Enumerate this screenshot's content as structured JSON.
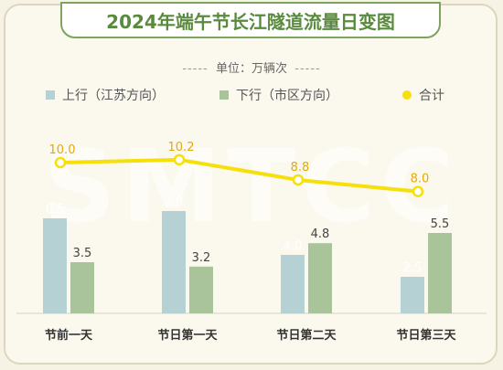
{
  "title": "2024年端午节长江隧道流量日变图",
  "unit_prefix": "单位：",
  "unit": "万辆次",
  "unit_dash": "-----",
  "watermark": "SMTCC",
  "colors": {
    "up": "#b5d1d3",
    "down": "#a9c49b",
    "total": "#f6df0a",
    "total_dot_fill": "#ffffff",
    "up_label": "#ffffff",
    "down_label": "#444444",
    "total_label": "#e6a90a"
  },
  "legend": [
    {
      "name": "上行（江苏方向）",
      "color": "#b5d1d3",
      "shape": "square"
    },
    {
      "name": "下行（市区方向）",
      "color": "#a9c49b",
      "shape": "square"
    },
    {
      "name": "合计",
      "color": "#f6df0a",
      "shape": "circle"
    }
  ],
  "chart_data": {
    "type": "bar",
    "categories": [
      "节前一天",
      "节日第一天",
      "节日第二天",
      "节日第三天"
    ],
    "series": [
      {
        "name": "上行（江苏方向）",
        "type": "bar",
        "values": [
          6.5,
          7.0,
          4.0,
          2.5
        ]
      },
      {
        "name": "下行（市区方向）",
        "type": "bar",
        "values": [
          3.5,
          3.2,
          4.8,
          5.5
        ]
      },
      {
        "name": "合计",
        "type": "line",
        "values": [
          10.0,
          10.2,
          8.8,
          8.0
        ]
      }
    ],
    "title": "2024年端午节长江隧道流量日变图",
    "ylabel": "万辆次"
  }
}
